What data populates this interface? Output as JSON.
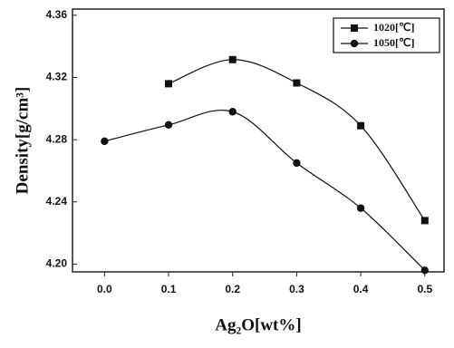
{
  "chart_data": {
    "type": "line",
    "xlabel": "Ag₂O[wt%]",
    "ylabel": "Density[g/cm³]",
    "x": [
      0.0,
      0.1,
      0.2,
      0.3,
      0.4,
      0.5
    ],
    "series": [
      {
        "name": "1020[℃]",
        "color": "#111111",
        "marker": "square",
        "values": [
          null,
          4.316,
          4.3315,
          4.3165,
          4.289,
          4.228
        ]
      },
      {
        "name": "1050[℃]",
        "color": "#111111",
        "marker": "circle",
        "values": [
          4.279,
          4.2895,
          4.298,
          4.265,
          4.236,
          4.196
        ]
      }
    ],
    "xlim": [
      -0.05,
      0.53
    ],
    "ylim": [
      4.195,
      4.364
    ],
    "xticks": [
      {
        "value": 0,
        "label": "0.0"
      },
      0.1,
      0.2,
      0.3,
      0.4,
      0.5
    ],
    "yticks": [
      {
        "value": 4.2,
        "label": "4.20"
      },
      4.24,
      4.28,
      4.32,
      4.36
    ],
    "grid": false,
    "legend": "upper right"
  }
}
